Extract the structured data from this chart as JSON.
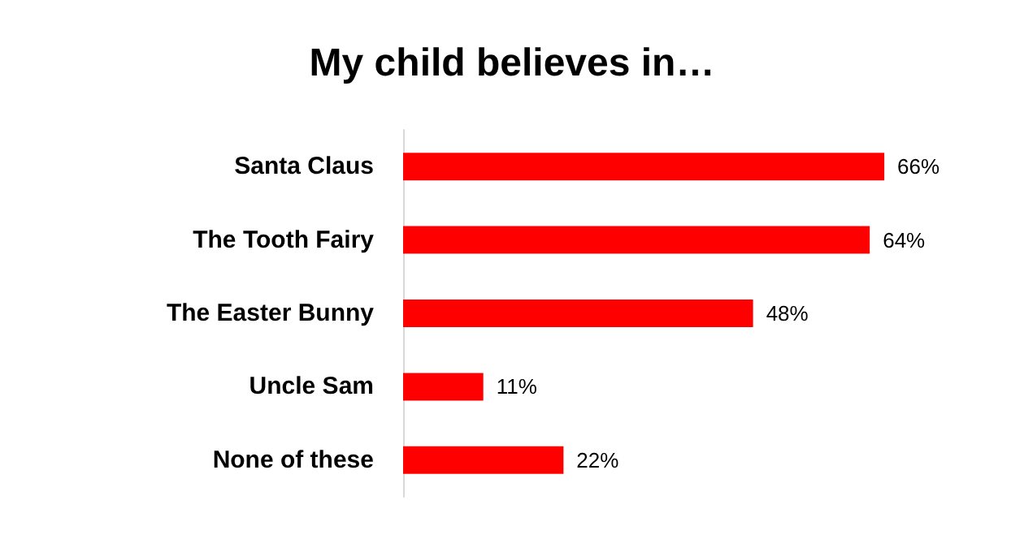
{
  "chart_data": {
    "type": "bar",
    "title": "My child believes in…",
    "orientation": "horizontal",
    "categories": [
      "Santa Claus",
      "The Tooth Fairy",
      "The Easter Bunny",
      "Uncle Sam",
      "None of these"
    ],
    "values": [
      66,
      64,
      48,
      11,
      22
    ],
    "value_labels": [
      "66%",
      "64%",
      "48%",
      "11%",
      "22%"
    ],
    "color": "#ff0000"
  }
}
